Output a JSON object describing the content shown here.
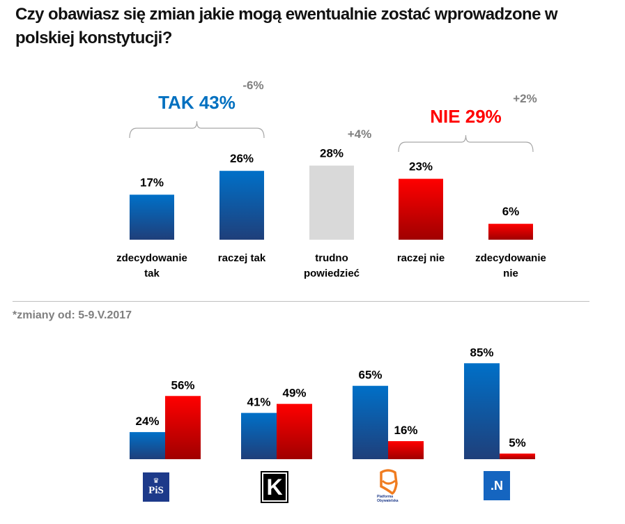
{
  "title": "Czy obawiasz się zmian jakie mogą ewentualnie zostać wprowadzone w polskiej konstytucji?",
  "footnote": "*zmiany od: 5-9.V.2017",
  "colors": {
    "blue": "#0070c0",
    "blue_dark": "#1f4e8c",
    "red": "#ff0000",
    "red_dark": "#a50000",
    "gray": "#d9d9d9",
    "tak_text": "#0070c0",
    "nie_text": "#ff0000",
    "change_text": "#7f7f7f"
  },
  "chart_data": [
    {
      "type": "bar",
      "title": "Czy obawiasz się zmian jakie mogą ewentualnie zostać wprowadzone w polskiej konstytucji?",
      "categories": [
        "zdecydowanie tak",
        "raczej tak",
        "trudno powiedzieć",
        "raczej nie",
        "zdecydowanie nie"
      ],
      "category_lines": [
        [
          "zdecydowanie",
          "tak"
        ],
        [
          "raczej tak"
        ],
        [
          "trudno",
          "powiedzieć"
        ],
        [
          "raczej nie"
        ],
        [
          "zdecydowanie",
          "nie"
        ]
      ],
      "values": [
        17,
        26,
        28,
        23,
        6
      ],
      "value_labels": [
        "17%",
        "26%",
        "28%",
        "23%",
        "6%"
      ],
      "bar_colors": [
        "blue",
        "blue",
        "gray",
        "red",
        "red"
      ],
      "groups": [
        {
          "label": "TAK 43%",
          "change": "-6%",
          "members": [
            0,
            1
          ],
          "color": "blue"
        },
        {
          "label": "NIE 29%",
          "change": "+2%",
          "members": [
            3,
            4
          ],
          "color": "red"
        }
      ],
      "extra_changes": [
        {
          "category": 2,
          "change": "+4%"
        }
      ],
      "ylim": [
        0,
        30
      ],
      "grid": false
    },
    {
      "type": "bar",
      "categories": [
        "PiS",
        "Kukiz'15",
        "Platforma Obywatelska",
        "Nowoczesna"
      ],
      "series": [
        {
          "name": "TAK",
          "color": "blue",
          "values": [
            24,
            41,
            65,
            85
          ],
          "labels": [
            "24%",
            "41%",
            "65%",
            "85%"
          ]
        },
        {
          "name": "NIE",
          "color": "red",
          "values": [
            56,
            49,
            16,
            5
          ],
          "labels": [
            "56%",
            "49%",
            "16%",
            "5%"
          ]
        }
      ],
      "ylim": [
        0,
        90
      ],
      "grid": false
    }
  ],
  "logos": {
    "pis": {
      "icon": "pis-logo",
      "text": "PiS"
    },
    "kukiz": {
      "icon": "kukiz-logo",
      "text": "K"
    },
    "po": {
      "icon": "po-logo",
      "text1": "Platforma",
      "text2": "Obywatelska"
    },
    "n": {
      "icon": "nowoczesna-logo",
      "text": ".N"
    }
  }
}
